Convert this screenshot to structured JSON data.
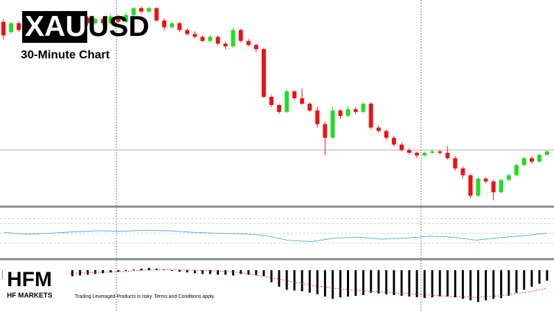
{
  "header": {
    "title_box": "XAU",
    "title_rest": "USD",
    "subtitle": "30-Minute Chart"
  },
  "chart_data": [
    {
      "type": "candlestick",
      "up_color": "#22dd22",
      "down_color": "#ee1111",
      "ylim": [
        0,
        300
      ],
      "price_line": 82,
      "candles": [
        [
          270,
          274,
          244,
          250
        ],
        [
          255,
          270,
          252,
          268
        ],
        [
          268,
          271,
          255,
          258
        ],
        [
          258,
          262,
          247,
          250
        ],
        [
          250,
          265,
          248,
          262
        ],
        [
          262,
          272,
          258,
          268
        ],
        [
          268,
          271,
          259,
          262
        ],
        [
          262,
          273,
          260,
          270
        ],
        [
          270,
          272,
          262,
          264
        ],
        [
          264,
          275,
          262,
          272
        ],
        [
          272,
          280,
          270,
          276
        ],
        [
          276,
          278,
          265,
          268
        ],
        [
          268,
          276,
          266,
          274
        ],
        [
          274,
          276,
          265,
          268
        ],
        [
          268,
          282,
          266,
          278
        ],
        [
          278,
          280,
          268,
          270
        ],
        [
          270,
          284,
          268,
          280
        ],
        [
          280,
          292,
          278,
          290
        ],
        [
          290,
          293,
          282,
          285
        ],
        [
          285,
          292,
          283,
          290
        ],
        [
          290,
          292,
          270,
          272
        ],
        [
          272,
          275,
          258,
          262
        ],
        [
          262,
          270,
          260,
          268
        ],
        [
          268,
          270,
          255,
          258
        ],
        [
          258,
          261,
          250,
          252
        ],
        [
          252,
          256,
          245,
          248
        ],
        [
          248,
          250,
          240,
          242
        ],
        [
          242,
          251,
          240,
          248
        ],
        [
          248,
          250,
          236,
          238
        ],
        [
          238,
          241,
          230,
          234
        ],
        [
          234,
          262,
          232,
          258
        ],
        [
          258,
          260,
          240,
          242
        ],
        [
          242,
          245,
          234,
          236
        ],
        [
          236,
          238,
          225,
          230
        ],
        [
          230,
          232,
          158,
          160
        ],
        [
          160,
          163,
          145,
          148
        ],
        [
          148,
          150,
          135,
          138
        ],
        [
          138,
          172,
          136,
          168
        ],
        [
          168,
          170,
          155,
          158
        ],
        [
          158,
          172,
          148,
          150
        ],
        [
          150,
          152,
          138,
          140
        ],
        [
          140,
          145,
          115,
          120
        ],
        [
          120,
          124,
          75,
          100
        ],
        [
          100,
          145,
          98,
          140
        ],
        [
          140,
          142,
          128,
          132
        ],
        [
          132,
          146,
          130,
          142
        ],
        [
          142,
          145,
          135,
          138
        ],
        [
          138,
          152,
          136,
          150
        ],
        [
          150,
          152,
          112,
          115
        ],
        [
          115,
          118,
          107,
          110
        ],
        [
          110,
          112,
          97,
          100
        ],
        [
          100,
          103,
          87,
          90
        ],
        [
          90,
          93,
          80,
          82
        ],
        [
          82,
          85,
          75,
          78
        ],
        [
          78,
          80,
          70,
          74
        ],
        [
          74,
          80,
          72,
          78
        ],
        [
          78,
          83,
          76,
          80
        ],
        [
          80,
          82,
          75,
          78
        ],
        [
          78,
          88,
          68,
          70
        ],
        [
          70,
          73,
          52,
          55
        ],
        [
          55,
          58,
          40,
          45
        ],
        [
          45,
          47,
          12,
          15
        ],
        [
          15,
          42,
          13,
          40
        ],
        [
          40,
          42,
          33,
          36
        ],
        [
          36,
          38,
          8,
          20
        ],
        [
          20,
          40,
          18,
          38
        ],
        [
          38,
          48,
          36,
          45
        ],
        [
          45,
          62,
          43,
          60
        ],
        [
          60,
          72,
          58,
          70
        ],
        [
          70,
          73,
          62,
          65
        ],
        [
          65,
          77,
          63,
          75
        ],
        [
          75,
          82,
          73,
          80
        ]
      ]
    },
    {
      "type": "line",
      "color": "#5aa9e6",
      "ylim": [
        0,
        100
      ],
      "levels": [
        80,
        70,
        50,
        30
      ],
      "values": [
        52,
        48,
        50,
        53,
        55,
        54,
        56,
        55,
        52,
        50,
        49,
        46,
        36,
        33,
        40,
        42,
        38,
        40,
        44,
        42,
        36,
        41,
        45,
        50
      ]
    },
    {
      "type": "bar",
      "color": "#000000",
      "signal_color": "#e03030",
      "ylim": [
        -45,
        10
      ],
      "values": [
        -12,
        -14,
        -13,
        -12,
        -11,
        -10,
        -10,
        -9,
        -8,
        -8,
        -7,
        -6,
        -5,
        -4,
        -3,
        -2,
        -1,
        1,
        2,
        3,
        2,
        1,
        -1,
        -2,
        -3,
        -4,
        -5,
        -5,
        -6,
        -6,
        -7,
        -5,
        -6,
        -7,
        -8,
        -16,
        -22,
        -26,
        -27,
        -28,
        -30,
        -32,
        -35,
        -38,
        -36,
        -35,
        -34,
        -33,
        -30,
        -31,
        -32,
        -33,
        -34,
        -35,
        -36,
        -37,
        -36,
        -35,
        -35,
        -36,
        -38,
        -40,
        -42,
        -40,
        -38,
        -37,
        -34,
        -30,
        -26,
        -22,
        -18,
        -14
      ],
      "signal": [
        -6,
        -6,
        -5,
        -4,
        -3,
        -2,
        0,
        1,
        0,
        -1,
        -3,
        -8,
        -14,
        -20,
        -24,
        -27,
        -29,
        -31,
        -33,
        -35,
        -36,
        -34,
        -30,
        -24
      ]
    }
  ],
  "footer": {
    "logo": "HFM",
    "brand": "HF MARKETS",
    "disclaimer": "Trading Leveraged Products is risky. Terms and Conditions apply."
  }
}
